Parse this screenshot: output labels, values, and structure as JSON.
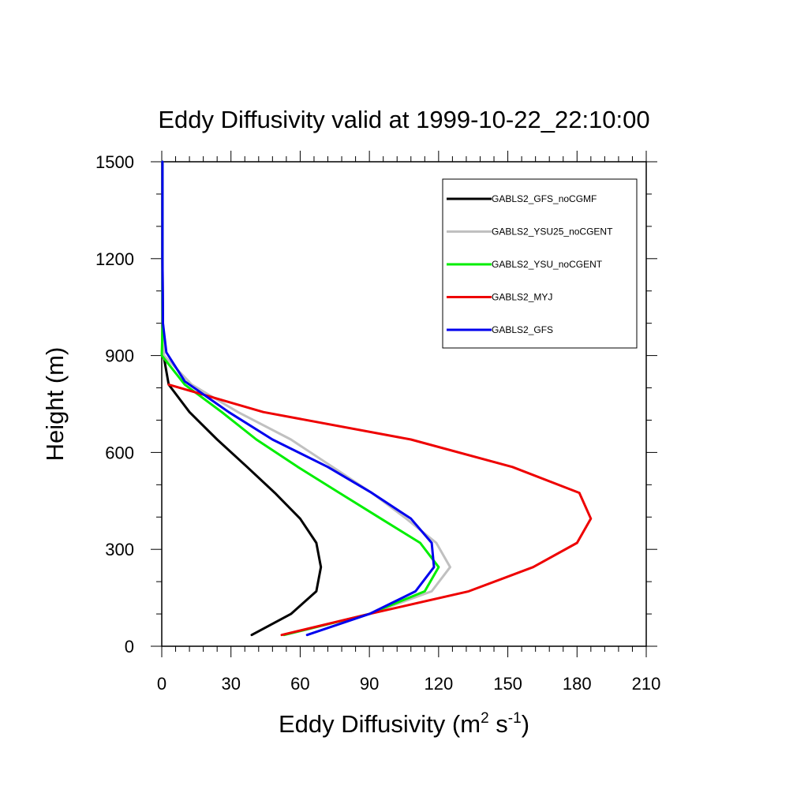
{
  "chart_data": {
    "type": "line",
    "title": "Eddy Diffusivity valid at 1999-10-22_22:10:00",
    "xlabel": "Eddy Diffusivity (m",
    "xlabel_sup1": "2",
    "xlabel_mid": " s",
    "xlabel_sup2": "-1",
    "xlabel_end": ")",
    "ylabel": "Height (m)",
    "xlim": [
      0,
      210
    ],
    "ylim": [
      0,
      1500
    ],
    "xticks": [
      0,
      30,
      60,
      90,
      120,
      150,
      180,
      210
    ],
    "yticks": [
      0,
      300,
      600,
      900,
      1200,
      1500
    ],
    "grid": false,
    "legend_position": "top-right",
    "series": [
      {
        "name": "GABLS2_GFS_noCGMF",
        "color": "#000000",
        "points": [
          [
            39,
            35
          ],
          [
            56,
            100
          ],
          [
            67,
            170
          ],
          [
            69,
            245
          ],
          [
            67,
            320
          ],
          [
            60,
            395
          ],
          [
            49,
            475
          ],
          [
            37,
            555
          ],
          [
            24,
            640
          ],
          [
            12,
            725
          ],
          [
            3,
            810
          ],
          [
            0.8,
            900
          ],
          [
            0.5,
            1000
          ],
          [
            0.4,
            1100
          ],
          [
            0.3,
            1200
          ],
          [
            0.3,
            1300
          ],
          [
            0.3,
            1400
          ],
          [
            0.3,
            1500
          ]
        ]
      },
      {
        "name": "GABLS2_YSU25_noCGENT",
        "color": "#c0c0c0",
        "points": [
          [
            53,
            35
          ],
          [
            90,
            100
          ],
          [
            117,
            170
          ],
          [
            125,
            245
          ],
          [
            119,
            320
          ],
          [
            106,
            395
          ],
          [
            91,
            475
          ],
          [
            74,
            555
          ],
          [
            56,
            640
          ],
          [
            33,
            725
          ],
          [
            13,
            810
          ],
          [
            1,
            900
          ],
          [
            0.4,
            1000
          ],
          [
            0.3,
            1100
          ],
          [
            0.3,
            1200
          ],
          [
            0.3,
            1300
          ],
          [
            0.3,
            1400
          ],
          [
            0.3,
            1500
          ]
        ]
      },
      {
        "name": "GABLS2_YSU_noCGENT",
        "color": "#00ee00",
        "points": [
          [
            53,
            35
          ],
          [
            90,
            100
          ],
          [
            114,
            170
          ],
          [
            120,
            245
          ],
          [
            112,
            320
          ],
          [
            95,
            395
          ],
          [
            77,
            475
          ],
          [
            59,
            555
          ],
          [
            41,
            640
          ],
          [
            26,
            725
          ],
          [
            10,
            810
          ],
          [
            0,
            900
          ],
          [
            0.4,
            1000
          ],
          [
            0.3,
            1100
          ],
          [
            0.3,
            1200
          ],
          [
            0.3,
            1300
          ],
          [
            0.3,
            1400
          ],
          [
            0.3,
            1500
          ]
        ]
      },
      {
        "name": "GABLS2_MYJ",
        "color": "#ee0000",
        "points": [
          [
            52,
            35
          ],
          [
            90,
            100
          ],
          [
            133,
            170
          ],
          [
            161,
            245
          ],
          [
            180,
            320
          ],
          [
            186,
            395
          ],
          [
            181,
            475
          ],
          [
            152,
            555
          ],
          [
            108,
            640
          ],
          [
            44,
            725
          ],
          [
            3,
            810
          ]
        ]
      },
      {
        "name": "GABLS2_GFS",
        "color": "#0000ee",
        "points": [
          [
            63,
            35
          ],
          [
            90,
            100
          ],
          [
            110,
            170
          ],
          [
            118,
            245
          ],
          [
            117,
            320
          ],
          [
            108,
            395
          ],
          [
            91,
            475
          ],
          [
            72,
            555
          ],
          [
            48,
            640
          ],
          [
            29,
            725
          ],
          [
            10,
            820
          ],
          [
            2,
            910
          ],
          [
            0.5,
            1000
          ],
          [
            0.4,
            1100
          ],
          [
            0.3,
            1200
          ],
          [
            0.3,
            1300
          ],
          [
            0.3,
            1400
          ],
          [
            0.3,
            1500
          ]
        ]
      }
    ]
  }
}
